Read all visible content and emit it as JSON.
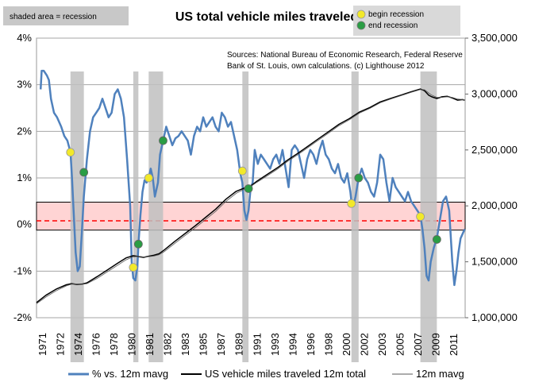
{
  "chart_data": {
    "type": "line",
    "title": "US total vehicle miles traveled",
    "shading_note": "shaded area = recession",
    "source": [
      "Sources: National Bureau of Economic Research, Federal Reserve",
      "Bank of St. Louis, own calculations. (c) Lighthouse 2012"
    ],
    "marker_legend": [
      {
        "label": "begin recession",
        "color": "#f2e92a"
      },
      {
        "label": "end recession",
        "color": "#2a9d44"
      }
    ],
    "x_ticks": [
      "1971",
      "1972",
      "1974",
      "1976",
      "1978",
      "1980",
      "1981",
      "1982",
      "1983",
      "1985",
      "1987",
      "1989",
      "1991",
      "1993",
      "1994",
      "1996",
      "1998",
      "2000",
      "2002",
      "2003",
      "2005",
      "2007",
      "2009",
      "2011"
    ],
    "x_range": [
      1970.6,
      2012.25
    ],
    "y_left": {
      "ticks": [
        "-2%",
        "-1%",
        "0%",
        "1%",
        "2%",
        "3%",
        "4%"
      ],
      "range": [
        -2,
        4
      ]
    },
    "y_right": {
      "ticks": [
        "1,000,000",
        "1,500,000",
        "2,000,000",
        "2,500,000",
        "3,000,000",
        "3,500,000"
      ],
      "range": [
        1000000,
        3500000
      ]
    },
    "band": {
      "lower": -0.12,
      "upper": 0.48,
      "color": "#ffd4d4"
    },
    "reference_line": {
      "value": 0.08,
      "color": "#ff0000",
      "style": "dashed"
    },
    "recessions": [
      [
        1973.9,
        1975.2
      ],
      [
        1980.0,
        1980.5
      ],
      [
        1981.5,
        1982.9
      ],
      [
        1990.6,
        1991.2
      ],
      [
        2001.2,
        2001.9
      ],
      [
        2007.9,
        2009.5
      ]
    ],
    "begin_points": [
      [
        1973.9,
        1.55
      ],
      [
        1980.0,
        -0.92
      ],
      [
        1981.5,
        1.0
      ],
      [
        1990.6,
        1.15
      ],
      [
        2001.2,
        0.45
      ],
      [
        2007.9,
        0.17
      ]
    ],
    "end_points": [
      [
        1975.2,
        1.12
      ],
      [
        1980.5,
        -0.42
      ],
      [
        1982.9,
        1.8
      ],
      [
        1991.2,
        0.77
      ],
      [
        2001.9,
        1.0
      ],
      [
        2009.5,
        -0.32
      ]
    ],
    "series": [
      {
        "name": "% vs. 12m mavg",
        "axis": "left",
        "color": "#4f81bd",
        "x": [
          1971.0,
          1971.1,
          1971.3,
          1971.6,
          1971.8,
          1972.0,
          1972.3,
          1972.6,
          1973.0,
          1973.3,
          1973.6,
          1973.9,
          1974.05,
          1974.2,
          1974.4,
          1974.6,
          1974.8,
          1975.0,
          1975.2,
          1975.5,
          1975.8,
          1976.1,
          1976.4,
          1976.7,
          1977.0,
          1977.3,
          1977.6,
          1977.9,
          1978.2,
          1978.5,
          1978.8,
          1979.1,
          1979.4,
          1979.7,
          1979.85,
          1980.0,
          1980.2,
          1980.4,
          1980.5,
          1980.7,
          1980.9,
          1981.1,
          1981.3,
          1981.5,
          1981.7,
          1981.9,
          1982.1,
          1982.4,
          1982.6,
          1982.9,
          1983.2,
          1983.5,
          1983.8,
          1984.1,
          1984.4,
          1984.7,
          1985.0,
          1985.3,
          1985.6,
          1985.9,
          1986.2,
          1986.5,
          1986.8,
          1987.1,
          1987.4,
          1987.7,
          1988.0,
          1988.3,
          1988.6,
          1988.9,
          1989.2,
          1989.5,
          1989.8,
          1990.1,
          1990.4,
          1990.6,
          1990.8,
          1991.0,
          1991.2,
          1991.4,
          1991.6,
          1991.8,
          1992.1,
          1992.4,
          1992.7,
          1993.0,
          1993.3,
          1993.6,
          1993.9,
          1994.2,
          1994.5,
          1994.8,
          1995.1,
          1995.4,
          1995.7,
          1996.0,
          1996.3,
          1996.6,
          1996.9,
          1997.2,
          1997.5,
          1997.8,
          1998.1,
          1998.4,
          1998.7,
          1999.0,
          1999.3,
          1999.6,
          1999.9,
          2000.2,
          2000.5,
          2000.8,
          2001.1,
          2001.2,
          2001.4,
          2001.6,
          2001.9,
          2002.2,
          2002.5,
          2002.8,
          2003.1,
          2003.4,
          2003.7,
          2004.0,
          2004.3,
          2004.6,
          2004.9,
          2005.2,
          2005.5,
          2005.8,
          2006.1,
          2006.4,
          2006.7,
          2007.0,
          2007.3,
          2007.6,
          2007.9,
          2008.1,
          2008.3,
          2008.5,
          2008.7,
          2008.9,
          2009.2,
          2009.5,
          2009.8,
          2010.1,
          2010.4,
          2010.7,
          2011.0,
          2011.2,
          2011.4,
          2011.6,
          2011.8,
          2012.0,
          2012.2
        ],
        "values": [
          2.9,
          3.3,
          3.3,
          3.2,
          3.1,
          2.7,
          2.4,
          2.3,
          2.1,
          1.9,
          1.8,
          1.55,
          1.0,
          0.3,
          -0.6,
          -1.0,
          -0.9,
          -0.2,
          0.6,
          1.4,
          2.0,
          2.3,
          2.4,
          2.5,
          2.7,
          2.5,
          2.3,
          2.4,
          2.8,
          2.9,
          2.7,
          2.3,
          1.4,
          0.4,
          -0.8,
          -1.15,
          -1.2,
          -0.9,
          -0.42,
          0.2,
          0.7,
          0.95,
          0.9,
          1.0,
          1.2,
          1.0,
          0.6,
          0.9,
          1.5,
          1.8,
          2.1,
          1.9,
          1.7,
          1.85,
          1.9,
          2.0,
          1.9,
          1.8,
          1.5,
          1.9,
          2.1,
          2.0,
          2.3,
          2.1,
          2.2,
          2.3,
          2.1,
          2.0,
          2.4,
          2.3,
          2.1,
          2.2,
          1.9,
          1.6,
          1.1,
          0.9,
          0.3,
          0.1,
          0.3,
          0.77,
          0.9,
          1.6,
          1.3,
          1.5,
          1.4,
          1.3,
          1.2,
          1.4,
          1.5,
          1.3,
          1.6,
          1.2,
          0.8,
          1.6,
          1.7,
          1.6,
          1.3,
          1.0,
          1.4,
          1.6,
          1.5,
          1.3,
          1.6,
          1.8,
          1.5,
          1.4,
          1.2,
          1.1,
          1.3,
          1.0,
          0.9,
          1.1,
          0.7,
          0.5,
          0.4,
          0.6,
          1.0,
          1.2,
          1.0,
          0.9,
          0.7,
          0.6,
          0.9,
          1.5,
          1.4,
          0.9,
          0.5,
          1.0,
          0.8,
          0.7,
          0.6,
          0.5,
          0.7,
          0.5,
          0.4,
          0.3,
          0.2,
          -0.1,
          -0.5,
          -1.1,
          -1.2,
          -0.8,
          -0.5,
          -0.3,
          0.1,
          0.5,
          0.6,
          0.3,
          -0.8,
          -1.3,
          -1.0,
          -0.6,
          -0.3,
          -0.2,
          -0.1
        ]
      },
      {
        "name": "US vehicle miles traveled 12m total",
        "axis": "right",
        "color": "#000000",
        "x": [
          1970.6,
          1971.5,
          1972.5,
          1973.5,
          1974.0,
          1974.5,
          1975.0,
          1975.5,
          1976.5,
          1977.5,
          1978.5,
          1979.3,
          1980.0,
          1980.6,
          1981.0,
          1981.5,
          1982.0,
          1982.5,
          1983.0,
          1984.0,
          1985.0,
          1986.0,
          1987.0,
          1988.0,
          1989.0,
          1990.0,
          1990.8,
          1991.2,
          1992.0,
          1993.0,
          1994.0,
          1995.0,
          1996.0,
          1997.0,
          1998.0,
          1999.0,
          2000.0,
          2001.0,
          2002.0,
          2003.0,
          2004.0,
          2005.0,
          2006.0,
          2007.0,
          2007.9,
          2008.3,
          2008.7,
          2009.0,
          2009.5,
          2010.0,
          2010.5,
          2011.0,
          2011.5,
          2012.0,
          2012.2
        ],
        "values": [
          1135000,
          1200000,
          1255000,
          1295000,
          1305000,
          1298000,
          1300000,
          1312000,
          1368000,
          1428000,
          1488000,
          1535000,
          1555000,
          1545000,
          1540000,
          1550000,
          1558000,
          1572000,
          1605000,
          1680000,
          1750000,
          1820000,
          1895000,
          1970000,
          2060000,
          2130000,
          2160000,
          2162000,
          2220000,
          2280000,
          2340000,
          2410000,
          2470000,
          2535000,
          2600000,
          2665000,
          2730000,
          2780000,
          2840000,
          2880000,
          2930000,
          2960000,
          2990000,
          3020000,
          3045000,
          3030000,
          2990000,
          2975000,
          2960000,
          2975000,
          2980000,
          2965000,
          2945000,
          2950000,
          2945000
        ]
      },
      {
        "name": "12m mavg",
        "axis": "right",
        "color": "#595959",
        "x": [
          1970.6,
          1971.5,
          1972.5,
          1973.5,
          1974.0,
          1974.5,
          1975.0,
          1975.5,
          1976.5,
          1977.5,
          1978.5,
          1979.3,
          1980.0,
          1980.6,
          1981.0,
          1981.5,
          1982.0,
          1982.5,
          1983.0,
          1984.0,
          1985.0,
          1986.0,
          1987.0,
          1988.0,
          1989.0,
          1990.0,
          1990.8,
          1991.2,
          1992.0,
          1993.0,
          1994.0,
          1995.0,
          1996.0,
          1997.0,
          1998.0,
          1999.0,
          2000.0,
          2001.0,
          2002.0,
          2003.0,
          2004.0,
          2005.0,
          2006.0,
          2007.0,
          2007.9,
          2008.3,
          2008.7,
          2009.0,
          2009.5,
          2010.0,
          2010.5,
          2011.0,
          2011.5,
          2012.0,
          2012.2
        ],
        "values": [
          1125000,
          1185000,
          1240000,
          1285000,
          1300000,
          1302000,
          1298000,
          1305000,
          1352000,
          1412000,
          1470000,
          1518000,
          1545000,
          1548000,
          1543000,
          1546000,
          1552000,
          1563000,
          1590000,
          1662000,
          1733000,
          1802000,
          1876000,
          1950000,
          2040000,
          2112000,
          2150000,
          2160000,
          2210000,
          2268000,
          2328000,
          2398000,
          2458000,
          2523000,
          2588000,
          2652000,
          2718000,
          2770000,
          2830000,
          2872000,
          2922000,
          2955000,
          2985000,
          3015000,
          3040000,
          3038000,
          3010000,
          2990000,
          2970000,
          2970000,
          2975000,
          2970000,
          2955000,
          2950000,
          2948000
        ]
      }
    ]
  }
}
